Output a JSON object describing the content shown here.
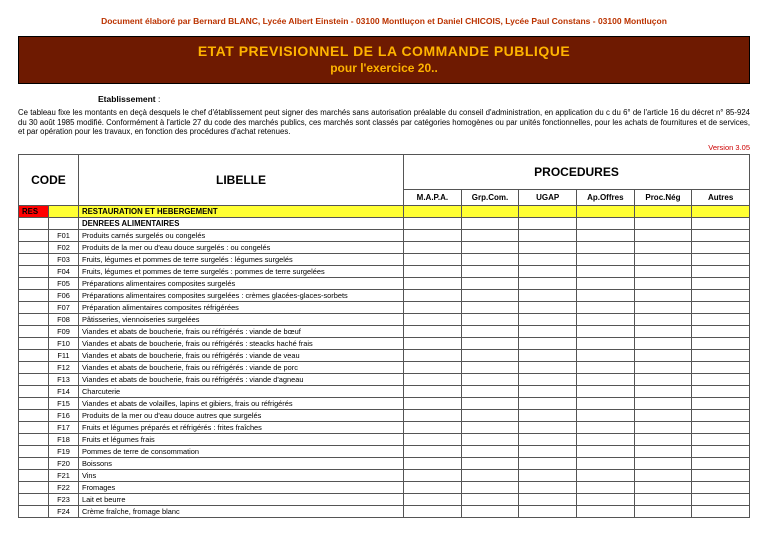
{
  "credit": "Document élaboré par Bernard BLANC, Lycée Albert Einstein - 03100 Montluçon et Daniel CHICOIS, Lycée Paul Constans - 03100 Montluçon",
  "title": {
    "line1": "ETAT PREVISIONNEL DE LA COMMANDE PUBLIQUE",
    "line2": "pour l'exercice 20.."
  },
  "etab_label": "Etablissement",
  "intro": "Ce tableau fixe les montants en deçà desquels le chef d'établissement peut signer des marchés sans autorisation préalable du conseil d'administration, en application du c du 6° de l'article 16 du décret n° 85-924 du 30 août 1985 modifié. Conformément à l'article 27 du code des marchés publics, ces marchés sont classés par catégories homogènes ou par unités fonctionnelles, pour les achats de fournitures et de services, et par opération pour les travaux, en fonction des procédures d'achat retenues.",
  "version": "Version 3.05",
  "headers": {
    "code": "CODE",
    "libelle": "LIBELLE",
    "procedures": "PROCEDURES",
    "sub": [
      "M.A.P.A.",
      "Grp.Com.",
      "UGAP",
      "Ap.Offres",
      "Proc.Nég",
      "Autres"
    ]
  },
  "category": {
    "code": "RES",
    "label": "RESTAURATION ET HEBERGEMENT"
  },
  "subcategory": "DENREES ALIMENTAIRES",
  "rows": [
    {
      "code": "F01",
      "lib": "Produits carnés surgelés ou congelés"
    },
    {
      "code": "F02",
      "lib": "Produits de la mer ou d'eau douce surgelés : ou congelés"
    },
    {
      "code": "F03",
      "lib": "Fruits, légumes et pommes de terre surgelés : légumes surgelés"
    },
    {
      "code": "F04",
      "lib": "Fruits, légumes et pommes de terre surgelés : pommes de terre surgelées"
    },
    {
      "code": "F05",
      "lib": "Préparations alimentaires composites surgelés"
    },
    {
      "code": "F06",
      "lib": "Préparations alimentaires composites surgelées : crèmes glacées-glaces-sorbets"
    },
    {
      "code": "F07",
      "lib": "Préparation alimentaires composites réfrigérées"
    },
    {
      "code": "F08",
      "lib": "Pâtisseries, viennoiseries surgelées"
    },
    {
      "code": "F09",
      "lib": "Viandes et abats de boucherie, frais ou réfrigérés : viande de bœuf"
    },
    {
      "code": "F10",
      "lib": "Viandes et abats de boucherie, frais ou réfrigérés : steacks haché frais"
    },
    {
      "code": "F11",
      "lib": "Viandes et abats de boucherie, frais ou réfrigérés : viande de veau"
    },
    {
      "code": "F12",
      "lib": "Viandes et abats de boucherie, frais ou réfrigérés : viande de porc"
    },
    {
      "code": "F13",
      "lib": "Viandes et abats de boucherie, frais ou réfrigérés : viande d'agneau"
    },
    {
      "code": "F14",
      "lib": "Charcuterie"
    },
    {
      "code": "F15",
      "lib": "Viandes et abats de volailles, lapins et gibiers, frais ou réfrigérés"
    },
    {
      "code": "F16",
      "lib": "Produits de la mer ou d'eau douce autres que surgelés"
    },
    {
      "code": "F17",
      "lib": "Fruits et légumes préparés et réfrigérés : frites fraîches"
    },
    {
      "code": "F18",
      "lib": "Fruits et légumes frais"
    },
    {
      "code": "F19",
      "lib": "Pommes de terre de consommation"
    },
    {
      "code": "F20",
      "lib": "Boissons"
    },
    {
      "code": "F21",
      "lib": "Vins"
    },
    {
      "code": "F22",
      "lib": "Fromages"
    },
    {
      "code": "F23",
      "lib": "Lait et beurre"
    },
    {
      "code": "F24",
      "lib": "Crème fraîche, fromage blanc"
    }
  ],
  "colors": {
    "title_bg": "#6e1a01",
    "title_fg": "#ffb400",
    "credit_fg": "#bb3300",
    "highlight_bg": "#ffff33",
    "cat_code_bg": "#ff0000",
    "version_fg": "#cc0000",
    "border": "#555555"
  }
}
